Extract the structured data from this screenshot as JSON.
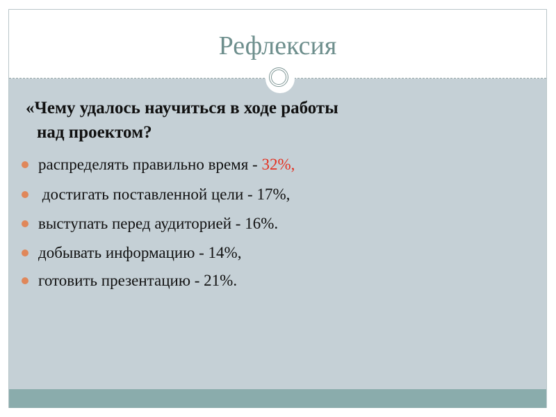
{
  "slide": {
    "title": "Рефлексия",
    "question_line1": "«Чему удалось научиться в ходе работы",
    "question_line2": "над проектом?",
    "items": [
      {
        "text": "распределять правильно время - ",
        "highlight": "32%,"
      },
      {
        "text": " достигать поставленной цели - 17%,"
      },
      {
        "text": "выступать перед аудиторией - 16%."
      },
      {
        "text": "добывать информацию - 14%,"
      },
      {
        "text": "готовить презентацию - 21%."
      }
    ],
    "colors": {
      "title": "#6e8f8d",
      "body_bg": "#c5d0d6",
      "footer_bg": "#8aacac",
      "bullet": "#e0875a",
      "highlight": "#e53020"
    }
  }
}
